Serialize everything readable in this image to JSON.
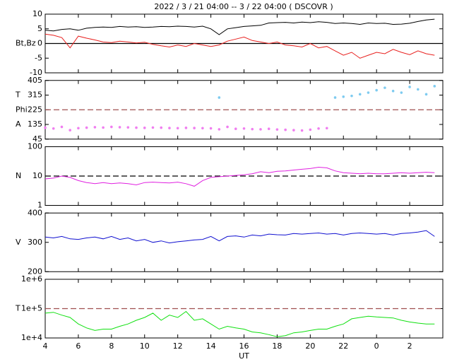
{
  "chart_data": [
    {
      "type": "line",
      "title": "2022 /  3 / 21  04:00 -- 3 / 22  04:00 ( DSCOVR )",
      "ylabel": "Bt,Bz",
      "xlim": [
        4,
        28
      ],
      "ylim": [
        -10,
        10
      ],
      "yticks": [
        10,
        5,
        0,
        -5,
        -10
      ],
      "ref_line": {
        "value": 0,
        "color": "#000000",
        "dashed": false
      },
      "x": [
        4,
        4.5,
        5,
        5.5,
        6,
        6.5,
        7,
        7.5,
        8,
        8.5,
        9,
        9.5,
        10,
        10.5,
        11,
        11.5,
        12,
        12.5,
        13,
        13.5,
        14,
        14.5,
        15,
        15.5,
        16,
        16.5,
        17,
        17.5,
        18,
        18.5,
        19,
        19.5,
        20,
        20.5,
        21,
        21.5,
        22,
        22.5,
        23,
        23.5,
        24,
        24.5,
        25,
        25.5,
        26,
        26.5,
        27,
        27.5
      ],
      "series": [
        {
          "name": "Bt",
          "color": "#000000",
          "values": [
            4.5,
            4.3,
            4.8,
            5.0,
            4.5,
            5.2,
            5.5,
            5.6,
            5.5,
            5.8,
            5.6,
            5.7,
            5.5,
            5.6,
            5.8,
            5.7,
            5.9,
            5.8,
            5.6,
            5.9,
            5.0,
            3.0,
            5.0,
            5.4,
            5.8,
            6.0,
            6.2,
            7.0,
            7.1,
            7.2,
            7.0,
            7.3,
            7.1,
            7.4,
            7.2,
            6.8,
            7.0,
            6.8,
            6.5,
            7.0,
            6.8,
            6.9,
            6.5,
            6.6,
            6.9,
            7.5,
            8.0,
            8.3
          ]
        },
        {
          "name": "Bz",
          "color": "#e8201e",
          "values": [
            3.2,
            2.8,
            2.0,
            -1.5,
            2.5,
            1.8,
            1.2,
            0.5,
            0.3,
            0.8,
            0.5,
            0.2,
            0.4,
            -0.3,
            -0.8,
            -1.2,
            -0.5,
            -1.0,
            0.0,
            -0.5,
            -1.0,
            -0.5,
            0.8,
            1.5,
            2.2,
            1.0,
            0.5,
            0.0,
            0.5,
            -0.5,
            -0.8,
            -1.2,
            0.0,
            -1.5,
            -1.0,
            -2.5,
            -4.0,
            -3.0,
            -5.0,
            -4.0,
            -3.0,
            -3.5,
            -2.0,
            -3.0,
            -3.8,
            -2.5,
            -3.5,
            -4.0
          ]
        }
      ]
    },
    {
      "type": "scatter",
      "side_labels": [
        "T",
        "Phi",
        "A"
      ],
      "xlim": [
        4,
        28
      ],
      "ylim": [
        45,
        405
      ],
      "yticks": [
        405,
        315,
        225,
        135,
        45
      ],
      "ref_line": {
        "value": 225,
        "color": "#a05050",
        "dashed": true
      },
      "x": [
        4,
        4.5,
        5,
        5.5,
        6,
        6.5,
        7,
        7.5,
        8,
        8.5,
        9,
        9.5,
        10,
        10.5,
        11,
        11.5,
        12,
        12.5,
        13,
        13.5,
        14,
        14.5,
        15,
        15.5,
        16,
        16.5,
        17,
        17.5,
        18,
        18.5,
        19,
        19.5,
        20,
        20.5,
        21,
        21.5,
        22,
        22.5,
        23,
        23.5,
        24,
        24.5,
        25,
        25.5,
        26,
        26.5,
        27,
        27.5
      ],
      "series": [
        {
          "name": "Phi",
          "color": "#7ecbf0",
          "values": [
            null,
            null,
            null,
            null,
            null,
            null,
            null,
            null,
            null,
            null,
            null,
            null,
            null,
            null,
            null,
            null,
            null,
            null,
            null,
            null,
            null,
            300,
            null,
            null,
            null,
            null,
            null,
            null,
            null,
            null,
            null,
            null,
            null,
            null,
            null,
            300,
            305,
            310,
            320,
            330,
            345,
            360,
            340,
            330,
            365,
            350,
            320,
            370
          ]
        },
        {
          "name": "A",
          "color": "#f07ef0",
          "values": [
            115,
            110,
            120,
            100,
            112,
            115,
            118,
            116,
            120,
            118,
            117,
            115,
            114,
            116,
            115,
            113,
            112,
            114,
            113,
            112,
            111,
            105,
            120,
            108,
            110,
            106,
            105,
            108,
            104,
            102,
            100,
            98,
            103,
            110,
            112,
            null,
            null,
            null,
            null,
            null,
            null,
            null,
            null,
            null,
            null,
            null,
            null,
            null
          ]
        }
      ]
    },
    {
      "type": "line",
      "ylabel": "N",
      "log": true,
      "xlim": [
        4,
        28
      ],
      "ylim": [
        1,
        100
      ],
      "yticks": [
        100,
        10,
        1
      ],
      "ref_line": {
        "value": 10,
        "color": "#000000",
        "dashed": true
      },
      "x": [
        4,
        4.5,
        5,
        5.5,
        6,
        6.5,
        7,
        7.5,
        8,
        8.5,
        9,
        9.5,
        10,
        10.5,
        11,
        11.5,
        12,
        12.5,
        13,
        13.5,
        14,
        14.5,
        15,
        15.5,
        16,
        16.5,
        17,
        17.5,
        18,
        18.5,
        19,
        19.5,
        20,
        20.5,
        21,
        21.5,
        22,
        22.5,
        23,
        23.5,
        24,
        24.5,
        25,
        25.5,
        26,
        26.5,
        27,
        27.5
      ],
      "series": [
        {
          "name": "N",
          "color": "#e020e0",
          "values": [
            8,
            8.5,
            10,
            9,
            7,
            6,
            5.5,
            6,
            5.5,
            5.8,
            5.5,
            5,
            6,
            6.2,
            6,
            5.8,
            6.2,
            5.5,
            4.5,
            7,
            9,
            9.5,
            10,
            10.5,
            11,
            12,
            14,
            13,
            14.5,
            15,
            16,
            17,
            18,
            20,
            19,
            15,
            13,
            12.5,
            12,
            12.5,
            12,
            12,
            12.5,
            13,
            12.5,
            13,
            13.5,
            13
          ]
        }
      ]
    },
    {
      "type": "line",
      "ylabel": "V",
      "xlim": [
        4,
        28
      ],
      "ylim": [
        200,
        400
      ],
      "yticks": [
        400,
        300,
        200
      ],
      "x": [
        4,
        4.5,
        5,
        5.5,
        6,
        6.5,
        7,
        7.5,
        8,
        8.5,
        9,
        9.5,
        10,
        10.5,
        11,
        11.5,
        12,
        12.5,
        13,
        13.5,
        14,
        14.5,
        15,
        15.5,
        16,
        16.5,
        17,
        17.5,
        18,
        18.5,
        19,
        19.5,
        20,
        20.5,
        21,
        21.5,
        22,
        22.5,
        23,
        23.5,
        24,
        24.5,
        25,
        25.5,
        26,
        26.5,
        27,
        27.5
      ],
      "series": [
        {
          "name": "V",
          "color": "#1010d0",
          "values": [
            318,
            315,
            320,
            312,
            310,
            315,
            318,
            312,
            320,
            310,
            315,
            305,
            310,
            300,
            305,
            298,
            302,
            305,
            308,
            310,
            320,
            305,
            320,
            322,
            318,
            325,
            322,
            328,
            326,
            325,
            330,
            328,
            330,
            332,
            328,
            330,
            325,
            330,
            332,
            330,
            328,
            330,
            325,
            330,
            332,
            335,
            340,
            320
          ]
        }
      ]
    },
    {
      "type": "line",
      "ylabel": "T",
      "log": true,
      "xlabel": "UT",
      "xlim": [
        4,
        28
      ],
      "ylim": [
        10000,
        1000000
      ],
      "yticks": [
        {
          "value": 1000000,
          "label": "1e+6"
        },
        {
          "value": 100000,
          "label": "1e+5"
        },
        {
          "value": 10000,
          "label": "1e+4"
        }
      ],
      "xticks": [
        4,
        6,
        8,
        10,
        12,
        14,
        16,
        18,
        20,
        22,
        {
          "value": 24,
          "label": "0"
        },
        {
          "value": 26,
          "label": "2"
        }
      ],
      "ref_line": {
        "value": 100000,
        "color": "#a05050",
        "dashed": true
      },
      "x": [
        4,
        4.5,
        5,
        5.5,
        6,
        6.5,
        7,
        7.5,
        8,
        8.5,
        9,
        9.5,
        10,
        10.5,
        11,
        11.5,
        12,
        12.5,
        13,
        13.5,
        14,
        14.5,
        15,
        15.5,
        16,
        16.5,
        17,
        17.5,
        18,
        18.5,
        19,
        19.5,
        20,
        20.5,
        21,
        21.5,
        22,
        22.5,
        23,
        23.5,
        24,
        24.5,
        25,
        25.5,
        26,
        26.5,
        27,
        27.5
      ],
      "series": [
        {
          "name": "T",
          "color": "#10e010",
          "values": [
            70000,
            75000,
            60000,
            50000,
            30000,
            22000,
            18000,
            20000,
            20000,
            25000,
            30000,
            40000,
            50000,
            70000,
            40000,
            60000,
            50000,
            80000,
            40000,
            45000,
            30000,
            20000,
            25000,
            22000,
            20000,
            16000,
            15000,
            13000,
            11000,
            12000,
            15000,
            16000,
            18000,
            20000,
            20000,
            25000,
            30000,
            45000,
            50000,
            55000,
            52000,
            50000,
            48000,
            40000,
            35000,
            32000,
            30000,
            30000
          ]
        }
      ]
    }
  ]
}
